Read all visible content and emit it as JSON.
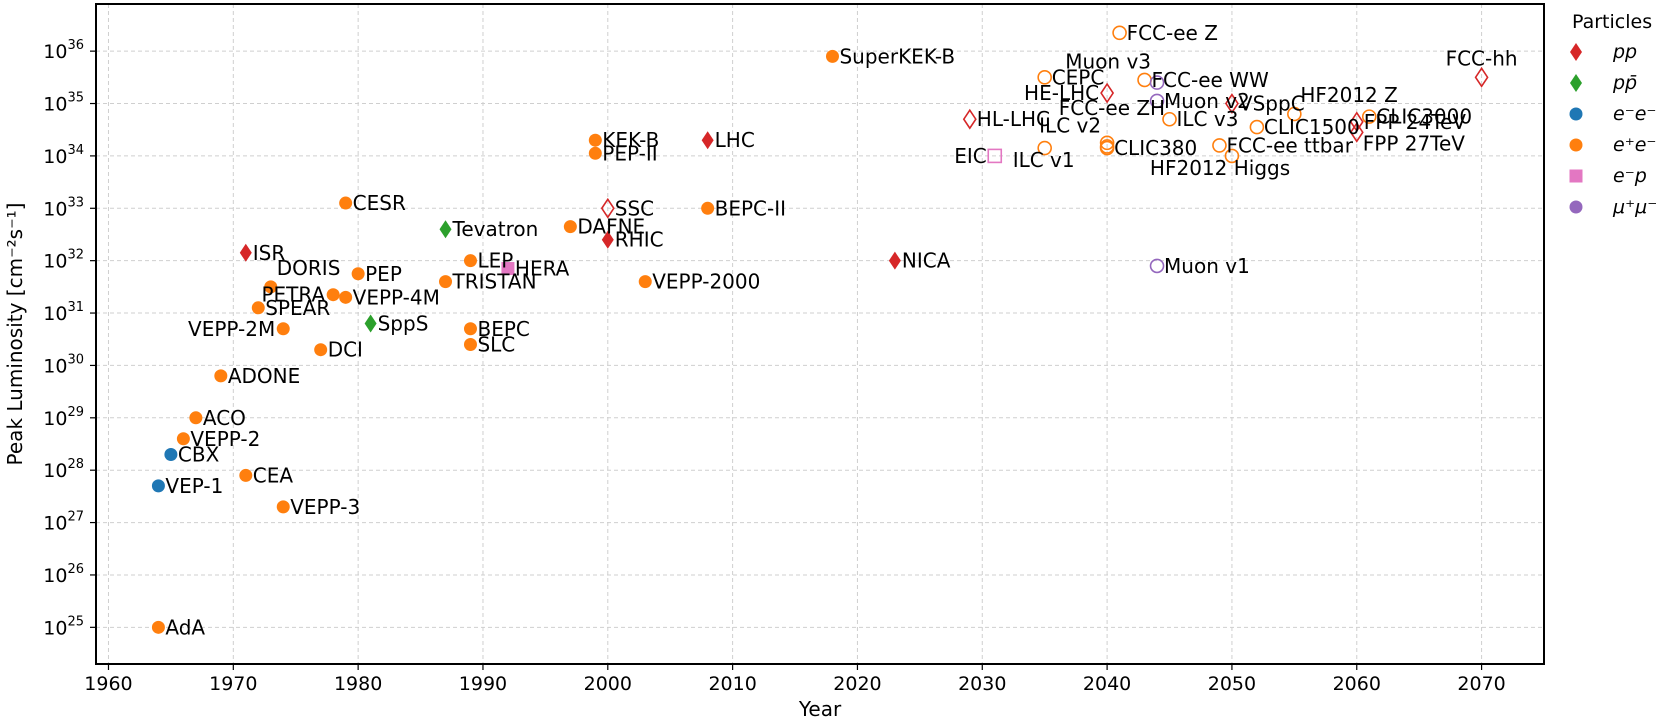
{
  "chart_data": {
    "type": "scatter",
    "title": "",
    "xlabel": "Year",
    "ylabel": "Peak Luminosity [cm⁻²s⁻¹]",
    "xlim": [
      1959,
      2075
    ],
    "ylim_log10": [
      24.3,
      36.9
    ],
    "y_scale": "log",
    "grid": true,
    "x_ticks": [
      1960,
      1970,
      1980,
      1990,
      2000,
      2010,
      2020,
      2030,
      2040,
      2050,
      2060,
      2070
    ],
    "y_tick_exponents": [
      25,
      26,
      27,
      28,
      29,
      30,
      31,
      32,
      33,
      34,
      35,
      36
    ],
    "y_tick_base": "10",
    "legend": {
      "title": "Particles",
      "placement": "outside-right",
      "entries": [
        {
          "key": "pp",
          "label": "pp",
          "marker": "diamond",
          "color": "#d62728"
        },
        {
          "key": "ppbar",
          "label": "pp̄",
          "marker": "diamond",
          "color": "#2ca02c"
        },
        {
          "key": "ee",
          "label": "e⁻e⁻",
          "marker": "circle",
          "color": "#1f77b4"
        },
        {
          "key": "epem",
          "label": "e⁺e⁻",
          "marker": "circle",
          "color": "#ff7f0e"
        },
        {
          "key": "ep",
          "label": "e⁻p",
          "marker": "square",
          "color": "#e377c2"
        },
        {
          "key": "mumu",
          "label": "μ⁺μ⁻",
          "marker": "circle",
          "color": "#9467bd"
        }
      ]
    },
    "points": [
      {
        "name": "AdA",
        "x": 1964,
        "y_log10": 25.0,
        "type": "epem",
        "filled": true,
        "anchor": "right"
      },
      {
        "name": "VEP-1",
        "x": 1964,
        "y_log10": 27.7,
        "type": "ee",
        "filled": true,
        "anchor": "right"
      },
      {
        "name": "CBX",
        "x": 1965,
        "y_log10": 28.3,
        "type": "ee",
        "filled": true,
        "anchor": "right"
      },
      {
        "name": "VEPP-2",
        "x": 1966,
        "y_log10": 28.6,
        "type": "epem",
        "filled": true,
        "anchor": "right"
      },
      {
        "name": "ACO",
        "x": 1967,
        "y_log10": 29.0,
        "type": "epem",
        "filled": true,
        "anchor": "right"
      },
      {
        "name": "ADONE",
        "x": 1969,
        "y_log10": 29.8,
        "type": "epem",
        "filled": true,
        "anchor": "right"
      },
      {
        "name": "CEA",
        "x": 1971,
        "y_log10": 27.9,
        "type": "epem",
        "filled": true,
        "anchor": "right"
      },
      {
        "name": "ISR",
        "x": 1971,
        "y_log10": 32.15,
        "type": "pp",
        "filled": true,
        "anchor": "right"
      },
      {
        "name": "SPEAR",
        "x": 1972,
        "y_log10": 31.1,
        "type": "epem",
        "filled": true,
        "anchor": "right"
      },
      {
        "name": "DORIS",
        "x": 1973,
        "y_log10": 31.5,
        "type": "epem",
        "filled": true,
        "anchor": "upper-right"
      },
      {
        "name": "VEPP-2M",
        "x": 1974,
        "y_log10": 30.7,
        "type": "epem",
        "filled": true,
        "anchor": "left"
      },
      {
        "name": "VEPP-3",
        "x": 1974,
        "y_log10": 27.3,
        "type": "epem",
        "filled": true,
        "anchor": "right"
      },
      {
        "name": "DCI",
        "x": 1977,
        "y_log10": 30.3,
        "type": "epem",
        "filled": true,
        "anchor": "right"
      },
      {
        "name": "PETRA",
        "x": 1978,
        "y_log10": 31.35,
        "type": "epem",
        "filled": true,
        "anchor": "left"
      },
      {
        "name": "VEPP-4M",
        "x": 1979,
        "y_log10": 31.3,
        "type": "epem",
        "filled": true,
        "anchor": "right"
      },
      {
        "name": "CESR",
        "x": 1979,
        "y_log10": 33.1,
        "type": "epem",
        "filled": true,
        "anchor": "right"
      },
      {
        "name": "PEP",
        "x": 1980,
        "y_log10": 31.75,
        "type": "epem",
        "filled": true,
        "anchor": "right"
      },
      {
        "name": "SppS",
        "x": 1981,
        "y_log10": 30.8,
        "type": "ppbar",
        "filled": true,
        "anchor": "right"
      },
      {
        "name": "TRISTAN",
        "x": 1987,
        "y_log10": 31.6,
        "type": "epem",
        "filled": true,
        "anchor": "right"
      },
      {
        "name": "Tevatron",
        "x": 1987,
        "y_log10": 32.6,
        "type": "ppbar",
        "filled": true,
        "anchor": "right"
      },
      {
        "name": "BEPC",
        "x": 1989,
        "y_log10": 30.7,
        "type": "epem",
        "filled": true,
        "anchor": "right"
      },
      {
        "name": "SLC",
        "x": 1989,
        "y_log10": 30.4,
        "type": "epem",
        "filled": true,
        "anchor": "right"
      },
      {
        "name": "LEP",
        "x": 1989,
        "y_log10": 32.0,
        "type": "epem",
        "filled": true,
        "anchor": "right"
      },
      {
        "name": "HERA",
        "x": 1992,
        "y_log10": 31.85,
        "type": "ep",
        "filled": true,
        "anchor": "right"
      },
      {
        "name": "DAFNE",
        "x": 1997,
        "y_log10": 32.65,
        "type": "epem",
        "filled": true,
        "anchor": "right"
      },
      {
        "name": "KEK-B",
        "x": 1999,
        "y_log10": 34.3,
        "type": "epem",
        "filled": true,
        "anchor": "right"
      },
      {
        "name": "PEP-II",
        "x": 1999,
        "y_log10": 34.05,
        "type": "epem",
        "filled": true,
        "anchor": "right"
      },
      {
        "name": "SSC",
        "x": 2000,
        "y_log10": 33.0,
        "type": "pp",
        "filled": false,
        "anchor": "right"
      },
      {
        "name": "RHIC",
        "x": 2000,
        "y_log10": 32.4,
        "type": "pp",
        "filled": true,
        "anchor": "right"
      },
      {
        "name": "VEPP-2000",
        "x": 2003,
        "y_log10": 31.6,
        "type": "epem",
        "filled": true,
        "anchor": "right"
      },
      {
        "name": "LHC",
        "x": 2008,
        "y_log10": 34.3,
        "type": "pp",
        "filled": true,
        "anchor": "right"
      },
      {
        "name": "BEPC-II",
        "x": 2008,
        "y_log10": 33.0,
        "type": "epem",
        "filled": true,
        "anchor": "right"
      },
      {
        "name": "SuperKEK-B",
        "x": 2018,
        "y_log10": 35.9,
        "type": "epem",
        "filled": true,
        "anchor": "right"
      },
      {
        "name": "NICA",
        "x": 2023,
        "y_log10": 32.0,
        "type": "pp",
        "filled": true,
        "anchor": "right"
      },
      {
        "name": "HL-LHC",
        "x": 2029,
        "y_log10": 34.7,
        "type": "pp",
        "filled": false,
        "anchor": "right"
      },
      {
        "name": "EIC",
        "x": 2031,
        "y_log10": 34.0,
        "type": "ep",
        "filled": false,
        "anchor": "left"
      },
      {
        "name": "CEPC",
        "x": 2035,
        "y_log10": 35.5,
        "type": "epem",
        "filled": false,
        "anchor": "right"
      },
      {
        "name": "ILC v1",
        "x": 2035,
        "y_log10": 34.15,
        "type": "epem",
        "filled": false,
        "anchor": "below"
      },
      {
        "name": "HE-LHC",
        "x": 2040,
        "y_log10": 35.2,
        "type": "pp",
        "filled": false,
        "anchor": "left"
      },
      {
        "name": "FCC-ee ZH",
        "x": 2040,
        "y_log10": 34.25,
        "type": "epem",
        "filled": false,
        "anchor": "upper-right-far"
      },
      {
        "name": "ILC v2",
        "x": 2040,
        "y_log10": 34.18,
        "type": "epem",
        "filled": false,
        "anchor": "upper-left"
      },
      {
        "name": "CLIC380",
        "x": 2040,
        "y_log10": 34.15,
        "type": "epem",
        "filled": false,
        "anchor": "right"
      },
      {
        "name": "FCC-ee Z",
        "x": 2041,
        "y_log10": 36.35,
        "type": "epem",
        "filled": false,
        "anchor": "right"
      },
      {
        "name": "FCC-ee WW",
        "x": 2043,
        "y_log10": 35.45,
        "type": "epem",
        "filled": false,
        "anchor": "right"
      },
      {
        "name": "Muon v3",
        "x": 2044,
        "y_log10": 35.4,
        "type": "mumu",
        "filled": false,
        "anchor": "upper-left"
      },
      {
        "name": "Muon v2",
        "x": 2044,
        "y_log10": 35.05,
        "type": "mumu",
        "filled": false,
        "anchor": "right"
      },
      {
        "name": "Muon v1",
        "x": 2044,
        "y_log10": 31.9,
        "type": "mumu",
        "filled": false,
        "anchor": "right"
      },
      {
        "name": "ILC v3",
        "x": 2045,
        "y_log10": 34.7,
        "type": "epem",
        "filled": false,
        "anchor": "right"
      },
      {
        "name": "FCC-ee ttbar",
        "x": 2049,
        "y_log10": 34.2,
        "type": "epem",
        "filled": false,
        "anchor": "right"
      },
      {
        "name": "HF2012 Higgs",
        "x": 2050,
        "y_log10": 34.0,
        "type": "epem",
        "filled": false,
        "anchor": "below-left"
      },
      {
        "name": "VSppC",
        "x": 2050,
        "y_log10": 35.0,
        "type": "pp",
        "filled": false,
        "anchor": "right"
      },
      {
        "name": "CLIC1500",
        "x": 2052,
        "y_log10": 34.55,
        "type": "epem",
        "filled": false,
        "anchor": "right"
      },
      {
        "name": "HF2012 Z",
        "x": 2055,
        "y_log10": 34.8,
        "type": "epem",
        "filled": false,
        "anchor": "upper-right"
      },
      {
        "name": "FPP 24TeV",
        "x": 2060,
        "y_log10": 34.65,
        "type": "pp",
        "filled": false,
        "anchor": "right"
      },
      {
        "name": "FPP 27TeV",
        "x": 2060,
        "y_log10": 34.45,
        "type": "pp",
        "filled": false,
        "anchor": "below-right"
      },
      {
        "name": "CLIC3000",
        "x": 2061,
        "y_log10": 34.75,
        "type": "epem",
        "filled": false,
        "anchor": "right"
      },
      {
        "name": "FCC-hh",
        "x": 2070,
        "y_log10": 35.5,
        "type": "pp",
        "filled": false,
        "anchor": "above"
      }
    ]
  }
}
